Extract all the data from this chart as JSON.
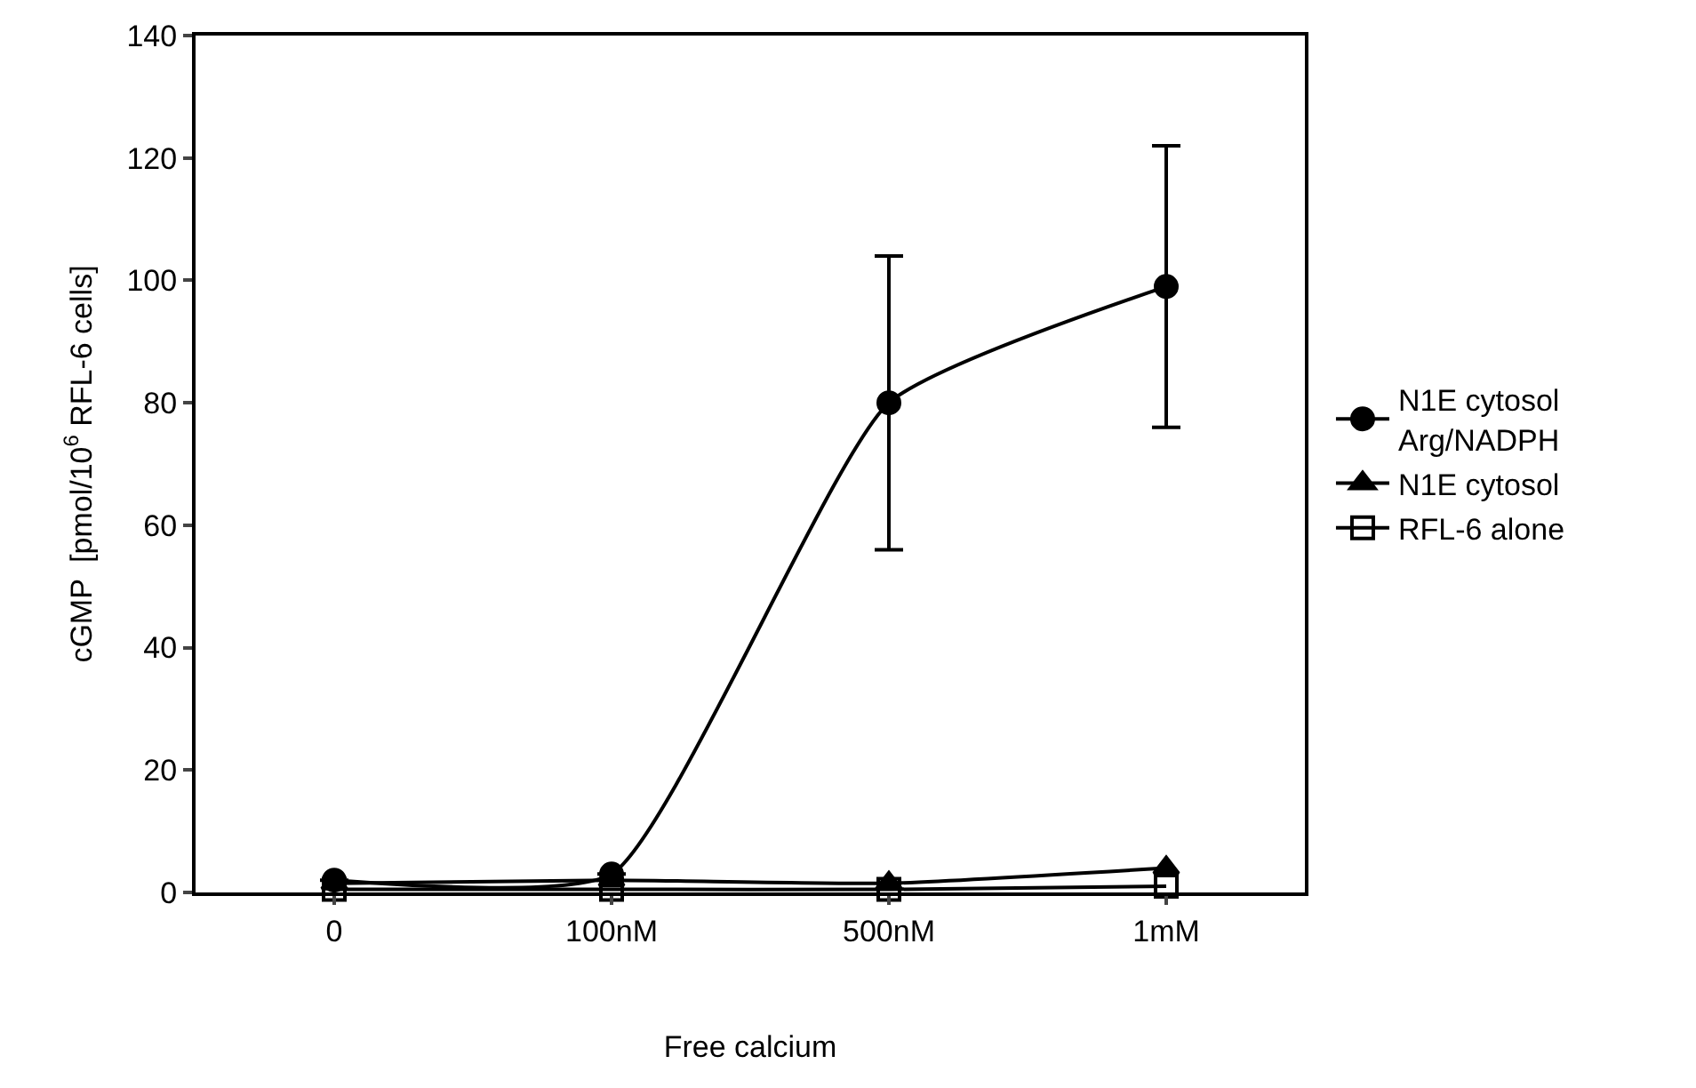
{
  "chart_data": {
    "type": "line",
    "xlabel": "Free calcium",
    "ylabel": "cGMP  [pmol/10$^{6}$ RFL-6 cells]",
    "categories": [
      "0",
      "100nM",
      "500nM",
      "1mM"
    ],
    "series": [
      {
        "name": "N1E cytosol\nArg/NADPH",
        "color": "#000000",
        "marker": "circle",
        "values": [
          2,
          3,
          80,
          99
        ],
        "errors": [
          null,
          null,
          24,
          23
        ]
      },
      {
        "name": "N1E cytosol",
        "color": "#000000",
        "marker": "triangle",
        "values": [
          1.5,
          2,
          1.5,
          4
        ]
      },
      {
        "name": "RFL-6 alone",
        "color": "#000000",
        "marker": "square",
        "values": [
          0.5,
          0.5,
          0.5,
          1
        ]
      }
    ],
    "ylim": [
      0,
      140
    ],
    "yticks": [
      0,
      20,
      40,
      60,
      80,
      100,
      120,
      140
    ],
    "legend": "right",
    "line_style": "solid"
  }
}
